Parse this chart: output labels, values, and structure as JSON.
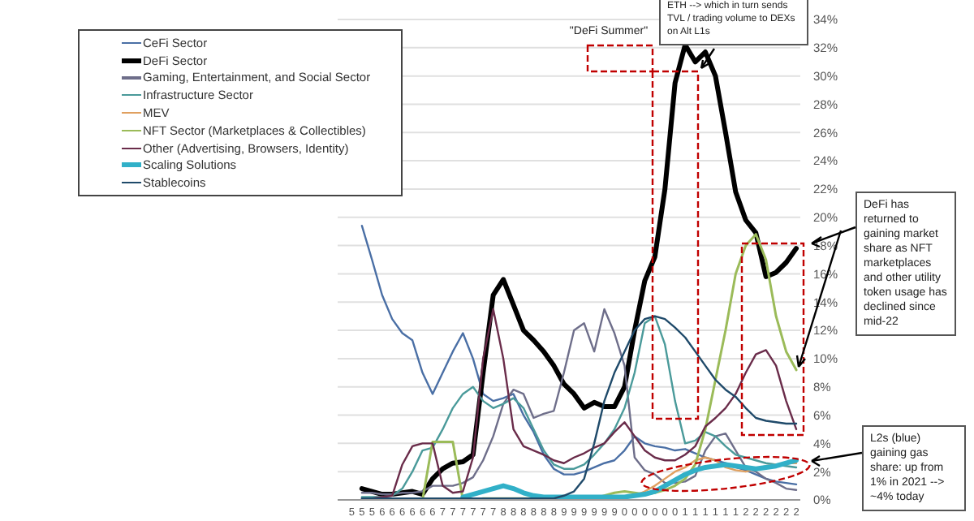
{
  "chart_data": {
    "type": "line",
    "categories": [
      "5",
      "5",
      "5",
      "6",
      "6",
      "6",
      "6",
      "6",
      "6",
      "7",
      "7",
      "7",
      "7",
      "7",
      "7",
      "8",
      "8",
      "8",
      "8",
      "8",
      "8",
      "9",
      "9",
      "9",
      "9",
      "9",
      "9",
      "0",
      "0",
      "0",
      "0",
      "0",
      "0",
      "1",
      "1",
      "1",
      "1",
      "1",
      "1",
      "2",
      "2",
      "2",
      "2",
      "2",
      "2"
    ],
    "series": [
      {
        "name": "CeFi Sector",
        "color": "#4a6fa5",
        "values": [
          null,
          19.4,
          17,
          14.5,
          12.8,
          11.8,
          11.3,
          9,
          7.5,
          9,
          10.5,
          11.8,
          10,
          7.5,
          7,
          7.2,
          7.5,
          6,
          4.8,
          3.2,
          2.2,
          1.8,
          1.8,
          2,
          2.3,
          2.6,
          2.8,
          3.5,
          4.5,
          4,
          3.8,
          3.7,
          3.5,
          3.6,
          3.3,
          3,
          2.8,
          2.6,
          2.3,
          2.1,
          1.8,
          1.5,
          1.3,
          1.2,
          1.1
        ]
      },
      {
        "name": "DeFi Sector",
        "color": "#000000",
        "values": [
          null,
          0.8,
          0.6,
          0.4,
          0.4,
          0.5,
          0.6,
          0.4,
          1.5,
          2.2,
          2.6,
          2.7,
          3.2,
          9,
          14.5,
          15.6,
          13.8,
          12,
          11.3,
          10.5,
          9.5,
          8.2,
          7.5,
          6.5,
          6.9,
          6.6,
          6.6,
          8,
          12,
          15.5,
          17.2,
          22,
          29.5,
          32.2,
          31,
          31.7,
          30,
          26,
          21.8,
          19.8,
          18.9,
          15.8,
          16.1,
          16.8,
          17.8
        ]
      },
      {
        "name": "Gaming, Entertainment, and Social Sector",
        "color": "#6e6e8a",
        "values": [
          null,
          0.5,
          0.5,
          0.4,
          0.4,
          0.5,
          0.5,
          0.6,
          1,
          1,
          1,
          1.2,
          1.6,
          2.8,
          4.5,
          6.8,
          7.8,
          7.5,
          5.8,
          6.1,
          6.3,
          9,
          12,
          12.5,
          10.5,
          13.5,
          11.8,
          9.5,
          3,
          2.1,
          1.8,
          1.2,
          1.2,
          1.3,
          1.7,
          3.5,
          4.5,
          4.7,
          3.5,
          2.3,
          2,
          1.5,
          1.2,
          0.8,
          0.7
        ]
      },
      {
        "name": "Infrastructure Sector",
        "color": "#4a9a9a",
        "values": [
          null,
          0.2,
          0.2,
          0.2,
          0.3,
          0.8,
          2,
          3.5,
          3.7,
          5,
          6.5,
          7.5,
          8,
          7,
          6.5,
          6.8,
          7.2,
          6.5,
          5,
          3.5,
          2.5,
          2.2,
          2.2,
          2.5,
          3.2,
          4,
          5,
          6.5,
          9,
          12.5,
          13,
          11,
          7,
          4,
          4.2,
          4.8,
          4.5,
          3.8,
          3.2,
          3,
          2.8,
          2.6,
          2.5,
          2.4,
          2.3
        ]
      },
      {
        "name": "MEV",
        "color": "#e0a060",
        "values": [
          null,
          null,
          null,
          null,
          null,
          null,
          null,
          null,
          null,
          null,
          null,
          null,
          null,
          null,
          null,
          null,
          null,
          null,
          null,
          null,
          null,
          null,
          null,
          null,
          null,
          null,
          null,
          null,
          0.3,
          0.6,
          1,
          1.5,
          2,
          2.3,
          2.8,
          3,
          2.8,
          2.3,
          2.1,
          2,
          2.2,
          2.4,
          2.5,
          2.6,
          2.6
        ]
      },
      {
        "name": "NFT Sector (Marketplaces & Collectibles)",
        "color": "#9bbb59",
        "values": [
          null,
          null,
          null,
          null,
          null,
          null,
          null,
          0,
          4.1,
          4.1,
          4.1,
          0,
          0,
          0.1,
          0.1,
          0.1,
          0.1,
          0.1,
          0.1,
          0.1,
          0.1,
          0.1,
          0.1,
          0.1,
          0.1,
          0.3,
          0.5,
          0.6,
          0.5,
          0.4,
          0.5,
          0.7,
          1,
          1.5,
          2.5,
          5,
          8.5,
          12,
          16,
          18,
          18.8,
          17,
          13,
          10.5,
          9.2
        ]
      },
      {
        "name": "Other (Advertising, Browsers, Identity)",
        "color": "#6a2c4a",
        "values": [
          null,
          0.1,
          0.1,
          0.2,
          0.3,
          2.5,
          3.8,
          4,
          4,
          1,
          0.5,
          0.6,
          3,
          10,
          13.5,
          10,
          5,
          3.8,
          3.5,
          3.2,
          2.8,
          2.6,
          3,
          3.3,
          3.7,
          4,
          4.8,
          5.5,
          4.5,
          3.5,
          3,
          2.8,
          2.8,
          3.2,
          3.8,
          5.2,
          5.8,
          6.5,
          7.5,
          9,
          10.3,
          10.6,
          9.5,
          7,
          5
        ]
      },
      {
        "name": "Scaling Solutions",
        "color": "#31b0c8",
        "values": [
          null,
          null,
          null,
          null,
          null,
          null,
          null,
          null,
          null,
          null,
          null,
          0.2,
          0.4,
          0.6,
          0.8,
          1,
          0.8,
          0.5,
          0.3,
          0.2,
          0.2,
          0.2,
          0.2,
          0.2,
          0.2,
          0.2,
          0.2,
          0.2,
          0.3,
          0.4,
          0.6,
          1,
          1.4,
          1.8,
          2.1,
          2.3,
          2.4,
          2.5,
          2.4,
          2.3,
          2.2,
          2.3,
          2.4,
          2.6,
          2.8
        ]
      },
      {
        "name": "Stablecoins",
        "color": "#1f4a6a",
        "values": [
          null,
          0.1,
          0.1,
          0.1,
          0.1,
          0.1,
          0.1,
          0.1,
          0.1,
          0.1,
          0.1,
          0.1,
          0.1,
          0.1,
          0.1,
          0.1,
          0.1,
          0.1,
          0.1,
          0.1,
          0.1,
          0.3,
          0.6,
          1.5,
          4,
          7,
          9,
          10.5,
          12,
          12.8,
          13,
          12.8,
          12.2,
          11.5,
          10.5,
          9.5,
          8.5,
          7.8,
          7.3,
          6.5,
          5.8,
          5.6,
          5.5,
          5.4,
          5.4
        ]
      }
    ],
    "ylim": [
      0,
      34
    ],
    "yticks": [
      {
        "value": 0,
        "label": "0%"
      },
      {
        "value": 2,
        "label": "2%"
      },
      {
        "value": 4,
        "label": "4%"
      },
      {
        "value": 6,
        "label": "6%"
      },
      {
        "value": 8,
        "label": "8%"
      },
      {
        "value": 10,
        "label": "10%"
      },
      {
        "value": 12,
        "label": "12%"
      },
      {
        "value": 14,
        "label": "14%"
      },
      {
        "value": 16,
        "label": "16%"
      },
      {
        "value": 18,
        "label": "18%"
      },
      {
        "value": 20,
        "label": "20%"
      },
      {
        "value": 22,
        "label": "22%"
      },
      {
        "value": 24,
        "label": "24%"
      },
      {
        "value": 26,
        "label": "26%"
      },
      {
        "value": 28,
        "label": "28%"
      },
      {
        "value": 30,
        "label": "30%"
      },
      {
        "value": 32,
        "label": "32%"
      },
      {
        "value": 34,
        "label": "34%"
      }
    ],
    "annotations": [
      "\"DeFi Summer\"",
      "ETH --> which in turn sends TVL / trading volume to DEXs on Alt L1s",
      "DeFi has returned to gaining market share as NFT marketplaces and other utility token usage has declined since mid-22",
      "L2s (blue) gaining gas share: up from 1% in 2021 --> ~4% today"
    ],
    "grid": "y",
    "legend": "top left",
    "marker": "none",
    "line_style": "solid"
  }
}
